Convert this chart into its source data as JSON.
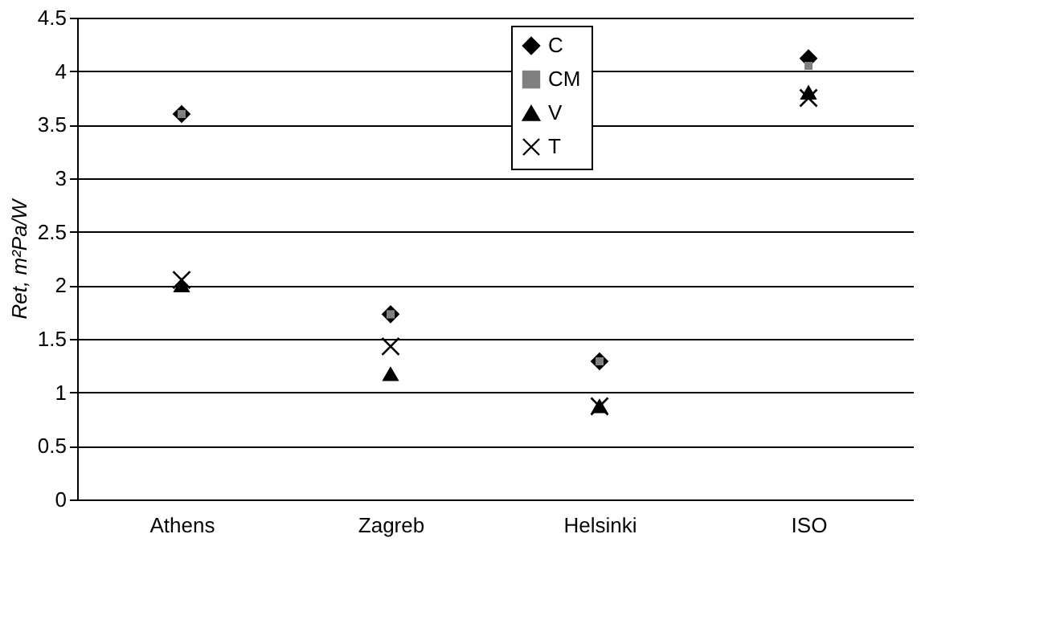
{
  "chart_data": {
    "type": "scatter",
    "ylabel": "Ret, m²Pa/W",
    "categories": [
      "Athens",
      "Zagreb",
      "Helsinki",
      "ISO"
    ],
    "ylim": [
      0,
      4.5
    ],
    "yticks": [
      0,
      0.5,
      1,
      1.5,
      2,
      2.5,
      3,
      3.5,
      4,
      4.5
    ],
    "grid": "y",
    "legend": "top",
    "series": [
      {
        "name": "C",
        "color": "#000000",
        "marker": "diamond",
        "values": [
          3.6,
          1.73,
          1.29,
          4.12
        ]
      },
      {
        "name": "CM",
        "color": "#808080",
        "marker": "square",
        "values": [
          3.6,
          1.73,
          1.29,
          4.05
        ]
      },
      {
        "name": "V",
        "color": "#000000",
        "marker": "triangle",
        "values": [
          2.0,
          1.17,
          0.87,
          3.8
        ]
      },
      {
        "name": "T",
        "color": "#000000",
        "marker": "cross",
        "values": [
          2.05,
          1.43,
          0.87,
          3.75
        ]
      }
    ]
  }
}
